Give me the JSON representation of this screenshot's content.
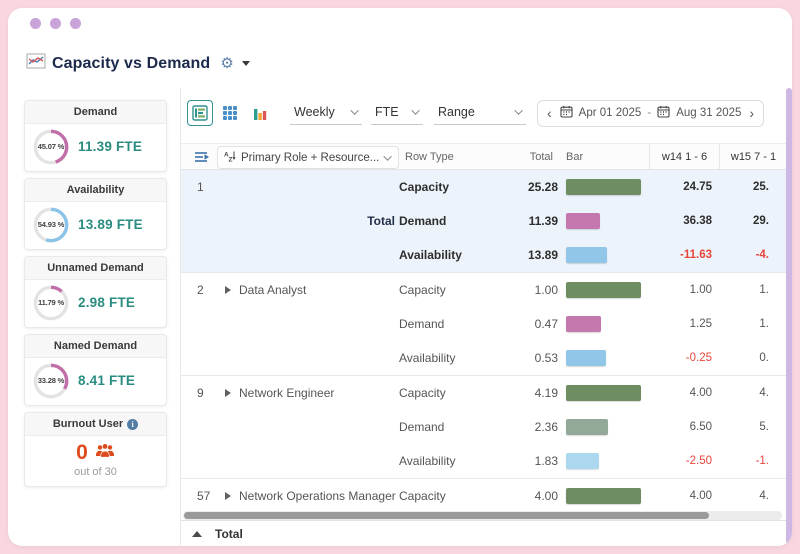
{
  "header": {
    "title": "Capacity vs Demand"
  },
  "colors": {
    "capacity_bar": "#6e8e62",
    "demand_bar": "#c478ae",
    "availability_bar": "#92c6e9",
    "muted_demand_bar": "#93a896",
    "muted_availability_bar": "#abd7ef",
    "negative": "#e8453c",
    "fte_teal": "#2a8c80",
    "burnout_accent": "#dd4a1d",
    "highlight_row": "#edf3fa",
    "ring_track": "#e3e3e3"
  },
  "sidebar": {
    "cards": [
      {
        "label": "Demand",
        "percent": "45.07 %",
        "pct": 45.07,
        "value": "11.39 FTE",
        "ring_color": "#c06fa9"
      },
      {
        "label": "Availability",
        "percent": "54.93 %",
        "pct": 54.93,
        "value": "13.89 FTE",
        "ring_color": "#8cc3e8"
      },
      {
        "label": "Unnamed Demand",
        "percent": "11.79 %",
        "pct": 11.79,
        "value": "2.98 FTE",
        "ring_color": "#c06fa9"
      },
      {
        "label": "Named Demand",
        "percent": "33.28 %",
        "pct": 33.28,
        "value": "8.41 FTE",
        "ring_color": "#c06fa9"
      }
    ],
    "burnout": {
      "label": "Burnout User",
      "info": "i",
      "value": "0",
      "sub": "out of 30"
    }
  },
  "toolbar": {
    "view_buttons": [
      {
        "name": "list-bar-view",
        "selected": true
      },
      {
        "name": "grid-view",
        "selected": false
      },
      {
        "name": "bar-chart-view",
        "selected": false
      }
    ],
    "selects": [
      {
        "name": "interval",
        "label": "Weekly"
      },
      {
        "name": "unit",
        "label": "FTE"
      },
      {
        "name": "range-mode",
        "label": "Range"
      }
    ],
    "date_range": {
      "start": "Apr 01 2025",
      "separator": "-",
      "end": "Aug 31 2025"
    }
  },
  "table": {
    "group_by_label": "Primary Role + Resource...",
    "headers": {
      "row_type": "Row Type",
      "total": "Total",
      "bar": "Bar",
      "week1": "w14 1 - 6",
      "week2": "w15 7 - 1"
    },
    "groups": [
      {
        "id": "1",
        "name": "Total",
        "name_on_row": 1,
        "name_align": "right",
        "bold_name": true,
        "expandable": false,
        "highlight": true,
        "rows": [
          {
            "type": "Capacity",
            "total": "25.28",
            "bar_color": "#6e8e62",
            "week1": "24.75",
            "week2": "25."
          },
          {
            "type": "Demand",
            "total": "11.39",
            "bar_color": "#c478ae",
            "week1": "36.38",
            "week2": "29."
          },
          {
            "type": "Availability",
            "total": "13.89",
            "bar_color": "#92c6e9",
            "week1": "-11.63",
            "week2": "-4."
          }
        ]
      },
      {
        "id": "2",
        "name": "Data Analyst",
        "name_on_row": 0,
        "name_align": "left",
        "bold_name": false,
        "expandable": true,
        "highlight": false,
        "rows": [
          {
            "type": "Capacity",
            "total": "1.00",
            "bar_color": "#6e8e62",
            "week1": "1.00",
            "week2": "1."
          },
          {
            "type": "Demand",
            "total": "0.47",
            "bar_color": "#c478ae",
            "week1": "1.25",
            "week2": "1."
          },
          {
            "type": "Availability",
            "total": "0.53",
            "bar_color": "#92c6e9",
            "week1": "-0.25",
            "week2": "0."
          }
        ]
      },
      {
        "id": "9",
        "name": "Network Engineer",
        "name_on_row": 0,
        "name_align": "left",
        "bold_name": false,
        "expandable": true,
        "highlight": false,
        "rows": [
          {
            "type": "Capacity",
            "total": "4.19",
            "bar_color": "#6e8e62",
            "week1": "4.00",
            "week2": "4."
          },
          {
            "type": "Demand",
            "total": "2.36",
            "bar_color": "#93a896",
            "week1": "6.50",
            "week2": "5."
          },
          {
            "type": "Availability",
            "total": "1.83",
            "bar_color": "#abd7ef",
            "dotted": true,
            "week1": "-2.50",
            "week2": "-1."
          }
        ]
      },
      {
        "id": "57",
        "name": "Network Operations Manager",
        "name_on_row": 0,
        "name_align": "left",
        "bold_name": false,
        "expandable": true,
        "highlight": false,
        "rows": [
          {
            "type": "Capacity",
            "total": "4.00",
            "bar_color": "#6e8e62",
            "week1": "4.00",
            "week2": "4."
          }
        ]
      }
    ],
    "footer_label": "Total"
  }
}
